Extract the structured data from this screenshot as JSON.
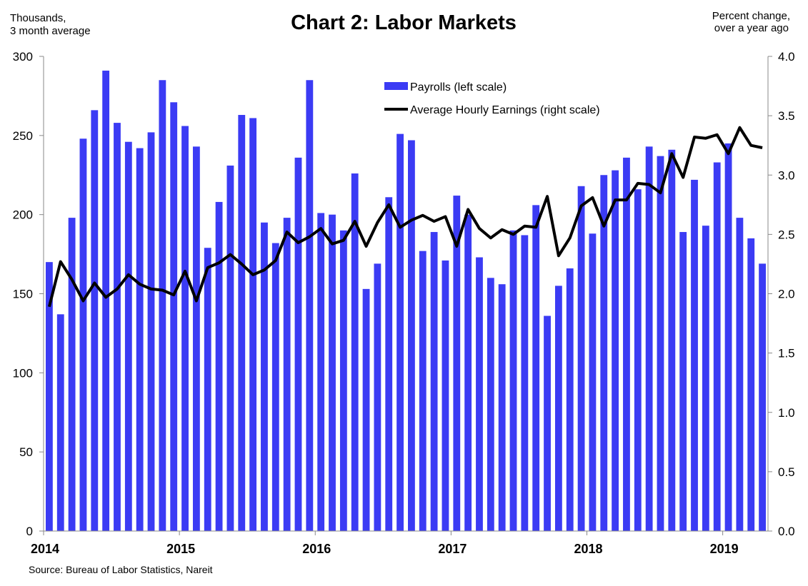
{
  "chart_data": {
    "type": "bar+line",
    "title": "Chart 2: Labor Markets",
    "left_axis_unit": [
      "Thousands,",
      "3 month average"
    ],
    "right_axis_unit": [
      "Percent change,",
      "over a year ago"
    ],
    "source": "Source: Bureau of Labor Statistics, Nareit",
    "x_start": "2014-01",
    "x_end": "2019-04",
    "x_tick_labels": [
      "2014",
      "2015",
      "2016",
      "2017",
      "2018",
      "2019"
    ],
    "left_ylim": [
      0,
      300
    ],
    "left_yticks": [
      "0",
      "50",
      "100",
      "150",
      "200",
      "250",
      "300"
    ],
    "right_ylim": [
      0,
      4
    ],
    "right_yticks": [
      "0.0",
      "0.5",
      "1.0",
      "1.5",
      "2.0",
      "2.5",
      "3.0",
      "3.5",
      "4.0"
    ],
    "legend_position": "top-center",
    "grid": false,
    "colors": {
      "bars": "#3b3bf4",
      "line": "#000000"
    },
    "series": [
      {
        "name": "Payrolls (left scale)",
        "type": "bar",
        "axis": "left",
        "months": [
          "2014-01",
          "2014-02",
          "2014-03",
          "2014-04",
          "2014-05",
          "2014-06",
          "2014-07",
          "2014-08",
          "2014-09",
          "2014-10",
          "2014-11",
          "2014-12",
          "2015-01",
          "2015-02",
          "2015-03",
          "2015-04",
          "2015-05",
          "2015-06",
          "2015-07",
          "2015-08",
          "2015-09",
          "2015-10",
          "2015-11",
          "2015-12",
          "2016-01",
          "2016-02",
          "2016-03",
          "2016-04",
          "2016-05",
          "2016-06",
          "2016-07",
          "2016-08",
          "2016-09",
          "2016-10",
          "2016-11",
          "2016-12",
          "2017-01",
          "2017-02",
          "2017-03",
          "2017-04",
          "2017-05",
          "2017-06",
          "2017-07",
          "2017-08",
          "2017-09",
          "2017-10",
          "2017-11",
          "2017-12",
          "2018-01",
          "2018-02",
          "2018-03",
          "2018-04",
          "2018-05",
          "2018-06",
          "2018-07",
          "2018-08",
          "2018-09",
          "2018-10",
          "2018-11",
          "2018-12",
          "2019-01",
          "2019-02",
          "2019-03",
          "2019-04"
        ],
        "values": [
          170,
          137,
          198,
          248,
          266,
          291,
          258,
          246,
          242,
          252,
          285,
          271,
          256,
          243,
          179,
          208,
          231,
          263,
          261,
          195,
          182,
          198,
          236,
          285,
          201,
          200,
          190,
          226,
          153,
          169,
          211,
          251,
          247,
          177,
          189,
          171,
          212,
          200,
          173,
          160,
          156,
          190,
          187,
          206,
          136,
          155,
          166,
          218,
          188,
          225,
          228,
          236,
          216,
          243,
          237,
          241,
          189,
          222,
          193,
          233,
          245,
          198,
          185,
          169
        ]
      },
      {
        "name": "Average Hourly Earnings (right scale)",
        "type": "line",
        "axis": "right",
        "months": [
          "2014-01",
          "2014-02",
          "2014-03",
          "2014-04",
          "2014-05",
          "2014-06",
          "2014-07",
          "2014-08",
          "2014-09",
          "2014-10",
          "2014-11",
          "2014-12",
          "2015-01",
          "2015-02",
          "2015-03",
          "2015-04",
          "2015-05",
          "2015-06",
          "2015-07",
          "2015-08",
          "2015-09",
          "2015-10",
          "2015-11",
          "2015-12",
          "2016-01",
          "2016-02",
          "2016-03",
          "2016-04",
          "2016-05",
          "2016-06",
          "2016-07",
          "2016-08",
          "2016-09",
          "2016-10",
          "2016-11",
          "2016-12",
          "2017-01",
          "2017-02",
          "2017-03",
          "2017-04",
          "2017-05",
          "2017-06",
          "2017-07",
          "2017-08",
          "2017-09",
          "2017-10",
          "2017-11",
          "2017-12",
          "2018-01",
          "2018-02",
          "2018-03",
          "2018-04",
          "2018-05",
          "2018-06",
          "2018-07",
          "2018-08",
          "2018-09",
          "2018-10",
          "2018-11",
          "2018-12",
          "2019-01",
          "2019-02",
          "2019-03",
          "2019-04"
        ],
        "values": [
          1.89,
          2.27,
          2.12,
          1.94,
          2.09,
          1.97,
          2.04,
          2.16,
          2.08,
          2.04,
          2.03,
          1.99,
          2.19,
          1.94,
          2.22,
          2.26,
          2.33,
          2.25,
          2.16,
          2.2,
          2.28,
          2.52,
          2.43,
          2.48,
          2.55,
          2.42,
          2.45,
          2.61,
          2.4,
          2.6,
          2.75,
          2.56,
          2.62,
          2.66,
          2.61,
          2.65,
          2.4,
          2.71,
          2.55,
          2.47,
          2.54,
          2.5,
          2.57,
          2.56,
          2.82,
          2.32,
          2.47,
          2.74,
          2.81,
          2.57,
          2.79,
          2.79,
          2.93,
          2.92,
          2.85,
          3.18,
          2.98,
          3.32,
          3.31,
          3.34,
          3.18,
          3.4,
          3.25,
          3.23
        ]
      }
    ]
  }
}
